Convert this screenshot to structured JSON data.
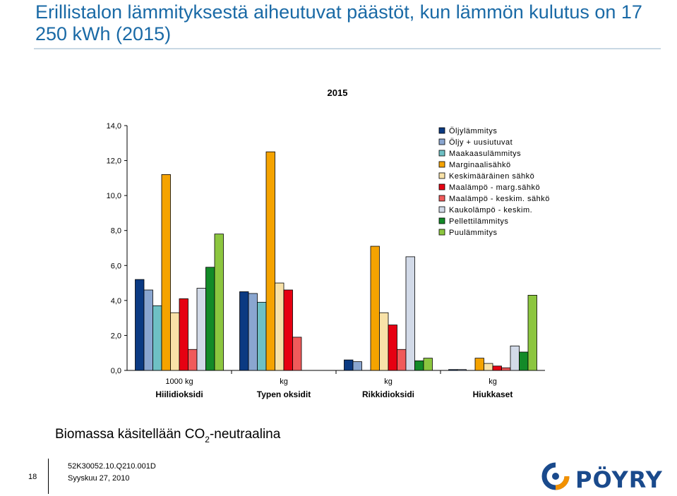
{
  "slide": {
    "title": "Erillistalon lämmityksestä aiheutuvat päästöt, kun lämmön kulutus on 17 250 kWh (2015)",
    "footnote_prefix": "Biomassa käsitellään CO",
    "footnote_sub": "2",
    "footnote_suffix": "-neutraalina"
  },
  "footer": {
    "page_number": "18",
    "code": "52K30052.10.Q210.001D",
    "date": "Syyskuu 27, 2010",
    "logo_text": "PÖYRY"
  },
  "chart_data": {
    "type": "bar",
    "title": "2015",
    "categories": [
      "Hiilidioksidi",
      "Typen oksidit",
      "Rikkidioksidi",
      "Hiukkaset"
    ],
    "category_units": [
      "1000 kg",
      "kg",
      "kg",
      "kg"
    ],
    "ylim": [
      0,
      14
    ],
    "yticks": [
      "0,0",
      "2,0",
      "4,0",
      "6,0",
      "8,0",
      "10,0",
      "12,0",
      "14,0"
    ],
    "legend_position": "top-right",
    "grid": false,
    "series": [
      {
        "name": "Öljylämmitys",
        "color": "#0b3a82",
        "values": [
          5.2,
          4.5,
          0.6,
          0.05
        ]
      },
      {
        "name": "Öljy + uusiutuvat",
        "color": "#8aa6d0",
        "values": [
          4.6,
          4.4,
          0.5,
          0.05
        ]
      },
      {
        "name": "Maakaasulämmitys",
        "color": "#6ec0c4",
        "values": [
          3.7,
          3.9,
          0.0,
          0.0
        ]
      },
      {
        "name": "Marginaalisähkö",
        "color": "#f5a300",
        "values": [
          11.2,
          12.5,
          7.1,
          0.7
        ]
      },
      {
        "name": "Keskimääräinen sähkö",
        "color": "#f8e2a8",
        "values": [
          3.3,
          5.0,
          3.3,
          0.4
        ]
      },
      {
        "name": "Maalämpö - marg.sähkö",
        "color": "#e60012",
        "values": [
          4.1,
          4.6,
          2.6,
          0.25
        ]
      },
      {
        "name": "Maalämpö - keskim. sähkö",
        "color": "#f05a5a",
        "values": [
          1.2,
          1.9,
          1.2,
          0.15
        ]
      },
      {
        "name": "Kaukolämpö - keskim.",
        "color": "#d2dae8",
        "values": [
          4.7,
          0.0,
          6.5,
          1.4
        ]
      },
      {
        "name": "Pellettilämmitys",
        "color": "#138a28",
        "values": [
          5.9,
          0.0,
          0.55,
          1.05
        ]
      },
      {
        "name": "Puulämmitys",
        "color": "#8cc63f",
        "values": [
          7.8,
          0.0,
          0.7,
          4.3
        ]
      }
    ]
  }
}
